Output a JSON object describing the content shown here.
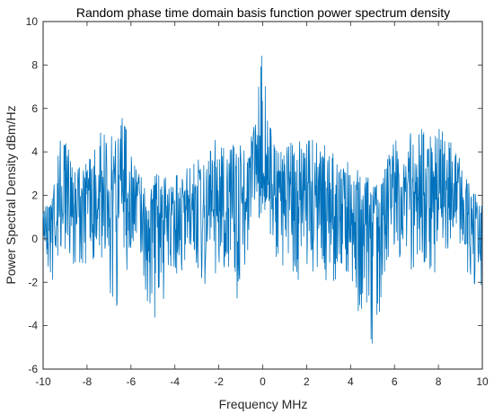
{
  "chart_data": {
    "type": "line",
    "title": "Random phase time domain basis function power spectrum density",
    "xlabel": "Frequency MHz",
    "ylabel": "Power Spectral Density dBm/Hz",
    "xlim": [
      -10,
      10
    ],
    "ylim": [
      -6,
      10
    ],
    "xticks": [
      -10,
      -8,
      -6,
      -4,
      -2,
      0,
      2,
      4,
      6,
      8,
      10
    ],
    "yticks": [
      -6,
      -4,
      -2,
      0,
      2,
      4,
      6,
      8,
      10
    ],
    "grid": false,
    "line_color": "#0072BD",
    "series": [
      {
        "name": "",
        "envelope_x": [
          -10.0,
          -9.6,
          -9.2,
          -8.8,
          -8.4,
          -8.0,
          -7.6,
          -7.2,
          -6.8,
          -6.4,
          -6.0,
          -5.6,
          -5.2,
          -4.8,
          -4.4,
          -4.0,
          -3.6,
          -3.2,
          -2.8,
          -2.4,
          -2.0,
          -1.6,
          -1.2,
          -0.8,
          -0.5,
          -0.3,
          -0.1,
          0.0,
          0.1,
          0.3,
          0.5,
          0.8,
          1.2,
          1.6,
          2.0,
          2.4,
          2.8,
          3.2,
          3.6,
          4.0,
          4.4,
          4.8,
          5.2,
          5.6,
          6.0,
          6.4,
          6.8,
          7.2,
          7.6,
          8.0,
          8.4,
          8.8,
          9.2,
          9.6,
          10.0
        ],
        "envelope_upper": [
          1.2,
          3.0,
          4.8,
          4.2,
          3.6,
          3.5,
          4.4,
          5.6,
          4.6,
          5.8,
          4.8,
          3.0,
          2.8,
          3.3,
          2.8,
          2.9,
          3.2,
          3.4,
          4.6,
          4.4,
          4.8,
          3.9,
          4.6,
          4.2,
          5.2,
          5.5,
          8.8,
          9.6,
          8.6,
          5.4,
          4.6,
          4.0,
          4.5,
          4.4,
          5.0,
          4.8,
          4.4,
          4.0,
          3.4,
          3.7,
          3.3,
          2.9,
          2.7,
          3.6,
          4.8,
          4.7,
          5.2,
          5.6,
          4.6,
          5.9,
          4.6,
          4.2,
          2.9,
          2.2,
          1.5
        ],
        "envelope_lower": [
          -0.5,
          -2.4,
          -0.6,
          -0.8,
          -1.6,
          -1.2,
          -0.9,
          -1.7,
          -4.1,
          -2.2,
          -1.1,
          -1.5,
          -3.2,
          -4.4,
          -2.1,
          -1.9,
          -1.8,
          -1.4,
          -2.7,
          -1.6,
          -1.9,
          -2.2,
          -3.7,
          -1.2,
          -1.2,
          0.4,
          0.9,
          1.6,
          0.7,
          -0.4,
          -1.0,
          -1.1,
          -1.6,
          -2.0,
          -1.5,
          -1.8,
          -1.9,
          -2.2,
          -1.4,
          -2.4,
          -3.6,
          -5.2,
          -5.2,
          -1.4,
          -0.6,
          -1.2,
          -1.7,
          -1.3,
          -1.5,
          -2.6,
          -1.4,
          -1.0,
          -1.2,
          -2.3,
          -2.6
        ],
        "mean_x": [
          -10.0,
          -8.0,
          -6.2,
          -5.0,
          -3.0,
          -1.0,
          0.0,
          1.0,
          3.0,
          5.0,
          6.5,
          8.0,
          10.0
        ],
        "mean_y": [
          0.6,
          2.2,
          2.4,
          1.0,
          1.2,
          1.6,
          3.2,
          1.8,
          1.5,
          0.6,
          2.2,
          2.1,
          0.8
        ],
        "samples": 1200
      }
    ]
  }
}
